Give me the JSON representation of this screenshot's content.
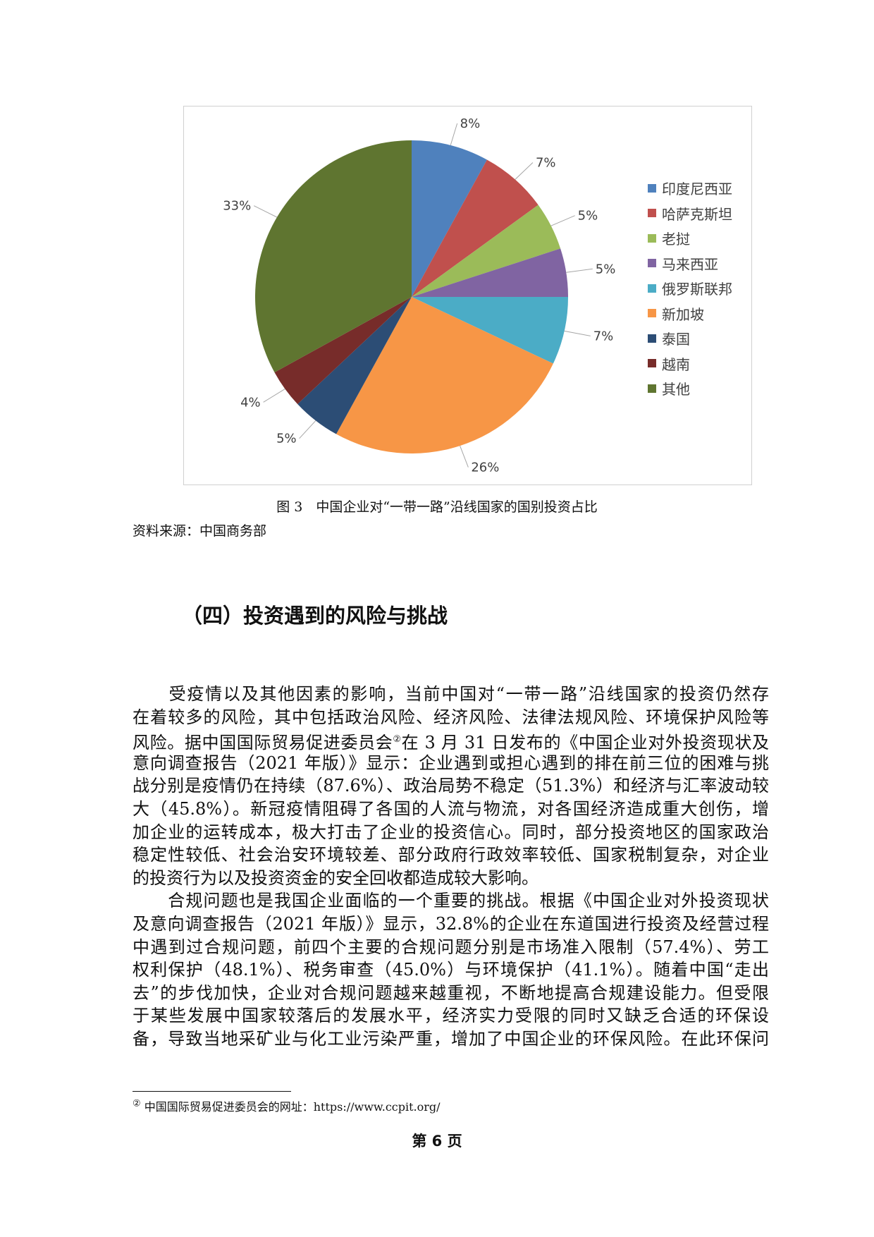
{
  "chart_data": {
    "type": "pie",
    "categories": [
      "印度尼西亚",
      "哈萨克斯坦",
      "老挝",
      "马来西亚",
      "俄罗斯联邦",
      "新加坡",
      "泰国",
      "越南",
      "其他"
    ],
    "values": [
      8,
      7,
      5,
      5,
      7,
      26,
      5,
      4,
      33
    ],
    "labels": [
      "8%",
      "7%",
      "5%",
      "5%",
      "7%",
      "26%",
      "5%",
      "4%",
      "33%"
    ],
    "colors": [
      "#4F81BD",
      "#C0504D",
      "#9BBB59",
      "#8064A2",
      "#4BACC6",
      "#F79646",
      "#2C4D75",
      "#772C2A",
      "#5F7530"
    ],
    "legend_position": "right"
  },
  "caption": "图 3　中国企业对“一带一路”沿线国家的国别投资占比",
  "source": "资料来源：中国商务部",
  "heading": "（四）投资遇到的风险与挑战",
  "body": {
    "p1": [
      "　　受疫情以及其他因素的影响，当前中国对“一带一路”沿线国家的投资仍然存",
      "在着较多的风险，其中包括政治风险、经济风险、法律法规风险、环境保护风险等",
      "风险。据中国国际贸易促进委员会",
      "在 3 月 31 日发布的《中国企业对外投资现状及",
      "意向调查报告（2021 年版）》显示：企业遇到或担心遇到的排在前三位的困难与挑",
      "战分别是疫情仍在持续（87.6%）、政治局势不稳定（51.3%）和经济与汇率波动较",
      "大（45.8%）。新冠疫情阻碍了各国的人流与物流，对各国经济造成重大创伤，增",
      "加企业的运转成本，极大打击了企业的投资信心。同时，部分投资地区的国家政治",
      "稳定性较低、社会治安环境较差、部分政府行政效率较低、国家税制复杂，对企业",
      "的投资行为以及投资资金的安全回收都造成较大影响。"
    ],
    "footnote_mark": "②",
    "p2": [
      "　　合规问题也是我国企业面临的一个重要的挑战。根据《中国企业对外投资现状",
      "及意向调查报告（2021 年版）》显示，32.8%的企业在东道国进行投资及经营过程",
      "中遇到过合规问题，前四个主要的合规问题分别是市场准入限制（57.4%）、劳工",
      "权利保护（48.1%）、税务审查（45.0%）与环境保护（41.1%）。随着中国“走出",
      "去”的步伐加快，企业对合规问题越来越重视，不断地提高合规建设能力。但受限",
      "于某些发展中国家较落后的发展水平，经济实力受限的同时又缺乏合适的环保设",
      "备，导致当地采矿业与化工业污染严重，增加了中国企业的环保风险。在此环保问"
    ]
  },
  "footnote": {
    "mark": "②",
    "text": "中国国际贸易促进委员会的网址：https://www.ccpit.org/"
  },
  "page_number": "第 6 页"
}
